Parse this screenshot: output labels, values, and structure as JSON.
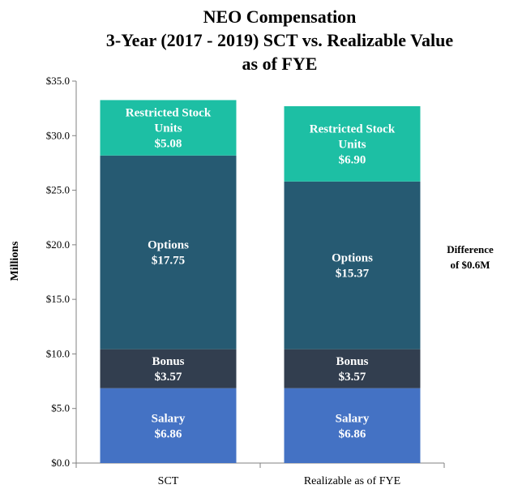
{
  "chart_data": {
    "type": "bar",
    "stacked": true,
    "title": [
      "NEO Compensation",
      "3-Year (2017 - 2019) SCT vs. Realizable Value",
      "as of FYE"
    ],
    "ylabel": "Millions",
    "ylim": [
      0,
      35
    ],
    "yticks": [
      "$0.0",
      "$5.0",
      "$10.0",
      "$15.0",
      "$20.0",
      "$25.0",
      "$30.0",
      "$35.0"
    ],
    "categories": [
      "SCT",
      "Realizable as of FYE"
    ],
    "grid": false,
    "legend": "none",
    "series": [
      {
        "name": "Salary",
        "values": [
          6.86,
          6.86
        ],
        "labels": [
          "$6.86",
          "$6.86"
        ],
        "color": "#4472C4"
      },
      {
        "name": "Bonus",
        "values": [
          3.57,
          3.57
        ],
        "labels": [
          "$3.57",
          "$3.57"
        ],
        "color": "#323E4F"
      },
      {
        "name": "Options",
        "values": [
          17.75,
          15.37
        ],
        "labels": [
          "$17.75",
          "$15.37"
        ],
        "color": "#265A72"
      },
      {
        "name": "Restricted Stock Units",
        "values": [
          5.08,
          6.9
        ],
        "labels": [
          "$5.08",
          "$6.90"
        ],
        "color": "#1DBFA4"
      }
    ],
    "annotation": [
      "Difference",
      "of $0.6M"
    ]
  }
}
